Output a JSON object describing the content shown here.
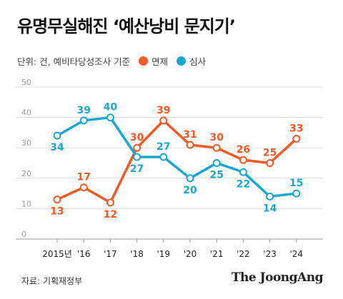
{
  "header": {
    "title": "유명무실해진 ‘예산낭비 문지기’",
    "unit": "단위: 건, 예비타당성조사 기준"
  },
  "footer": {
    "source": "자료: 기획재정부",
    "brand": "The JoongAng"
  },
  "colors": {
    "series1": "#f05a24",
    "series2": "#1aa7cf",
    "grid": "#dddddd",
    "axis": "#999999"
  },
  "chart_data": {
    "type": "line",
    "title": "유명무실해진 ‘예산낭비 문지기’",
    "xlabel": "",
    "ylabel": "",
    "categories": [
      "2015년",
      "'16",
      "'17",
      "'18",
      "'19",
      "'20",
      "'21",
      "'22",
      "'23",
      "'24"
    ],
    "y_ticks": [
      0,
      10,
      20,
      30,
      40,
      50
    ],
    "ylim": [
      0,
      50
    ],
    "grid": true,
    "legend": "top",
    "series": [
      {
        "name": "면제",
        "color": "#f05a24",
        "values": [
          13,
          17,
          12,
          30,
          39,
          31,
          30,
          26,
          25,
          33
        ]
      },
      {
        "name": "심사",
        "color": "#1aa7cf",
        "values": [
          34,
          39,
          40,
          27,
          27,
          20,
          25,
          22,
          14,
          15
        ]
      }
    ],
    "label_positions": [
      [
        "below",
        "above",
        "below",
        "above",
        "above",
        "above",
        "above",
        "above",
        "above",
        "above"
      ],
      [
        "below",
        "above",
        "above",
        "below",
        "above",
        "below",
        "below",
        "below",
        "below",
        "above"
      ]
    ]
  }
}
